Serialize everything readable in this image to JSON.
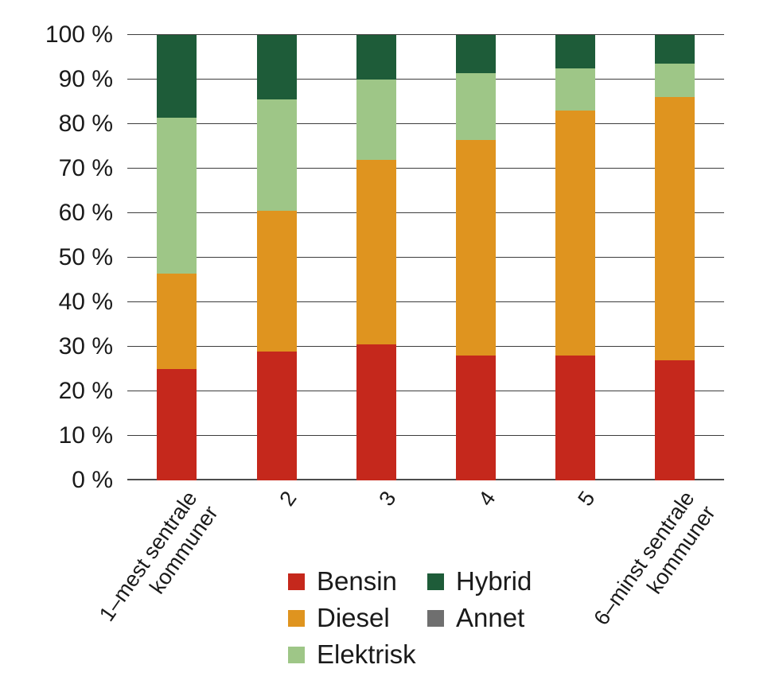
{
  "chart_data": {
    "type": "bar",
    "stacked": true,
    "stacked_percent": true,
    "title": "",
    "xlabel": "",
    "ylabel": "",
    "ylim": [
      0,
      100
    ],
    "grid": true,
    "categories": [
      "1–mest sentrale kommuner",
      "2",
      "3",
      "4",
      "5",
      "6–minst sentrale kommuner"
    ],
    "category_label_lines": [
      [
        "1–mest sentrale",
        "kommuner"
      ],
      [
        "2"
      ],
      [
        "3"
      ],
      [
        "4"
      ],
      [
        "5"
      ],
      [
        "6–minst sentrale",
        "kommuner"
      ]
    ],
    "yticks": [
      "0 %",
      "10 %",
      "20 %",
      "30 %",
      "40 %",
      "50 %",
      "60 %",
      "70 %",
      "80 %",
      "90 %",
      "100 %"
    ],
    "series": [
      {
        "name": "Bensin",
        "color": "#c5281c",
        "values": [
          25,
          29,
          30.5,
          28,
          28,
          27
        ]
      },
      {
        "name": "Diesel",
        "color": "#df941f",
        "values": [
          21.5,
          31.5,
          41.5,
          48.5,
          55,
          59
        ]
      },
      {
        "name": "Elektrisk",
        "color": "#9ec687",
        "values": [
          35,
          25,
          18,
          15,
          9.5,
          7.5
        ]
      },
      {
        "name": "Hybrid",
        "color": "#1e5c39",
        "values": [
          18.5,
          14.5,
          10,
          8.5,
          7.5,
          6.5
        ]
      },
      {
        "name": "Annet",
        "color": "#6f6f6f",
        "values": [
          0,
          0,
          0,
          0,
          0,
          0
        ]
      }
    ],
    "legend": {
      "position": "bottom",
      "columns": [
        [
          "Bensin",
          "Diesel",
          "Elektrisk"
        ],
        [
          "Hybrid",
          "Annet"
        ]
      ]
    }
  }
}
